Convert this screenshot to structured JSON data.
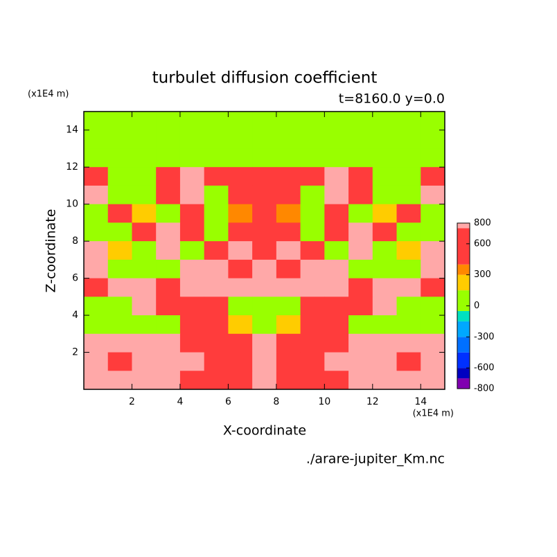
{
  "chart_data": {
    "type": "contour",
    "title": "turbulet diffusion coefficient",
    "subtitle": "t=8160.0 y=0.0",
    "x_label": "X-coordinate",
    "y_label": "Z-coordinate",
    "x_unit": "(x1E4 m)",
    "y_unit": "(x1E4 m)",
    "footnote": "./arare-jupiter_Km.nc",
    "xlim": [
      0,
      15
    ],
    "ylim": [
      0,
      15
    ],
    "xticks": [
      2,
      4,
      6,
      8,
      10,
      12,
      14
    ],
    "yticks": [
      2,
      4,
      6,
      8,
      10,
      12,
      14
    ],
    "x": [
      0.5,
      1.5,
      2.5,
      3.5,
      4.5,
      5.5,
      6.5,
      7.5,
      8.5,
      9.5,
      10.5,
      11.5,
      12.5,
      13.5,
      14.5
    ],
    "z_centers": [
      14.5,
      13.5,
      12.5,
      11.5,
      10.5,
      9.5,
      8.5,
      7.5,
      6.5,
      5.5,
      4.5,
      3.5,
      2.5,
      1.5,
      0.5
    ],
    "z": [
      [
        50,
        50,
        50,
        50,
        50,
        50,
        50,
        50,
        50,
        50,
        50,
        50,
        50,
        50,
        50
      ],
      [
        50,
        50,
        50,
        50,
        50,
        50,
        50,
        50,
        50,
        50,
        50,
        50,
        50,
        50,
        50
      ],
      [
        50,
        50,
        50,
        50,
        50,
        50,
        50,
        50,
        50,
        50,
        50,
        50,
        50,
        50,
        50
      ],
      [
        600,
        50,
        50,
        600,
        780,
        600,
        600,
        600,
        600,
        600,
        780,
        600,
        50,
        50,
        600
      ],
      [
        780,
        50,
        50,
        600,
        780,
        50,
        600,
        600,
        600,
        50,
        780,
        600,
        50,
        50,
        780
      ],
      [
        50,
        600,
        200,
        50,
        600,
        50,
        350,
        600,
        350,
        50,
        600,
        50,
        200,
        600,
        50
      ],
      [
        50,
        50,
        600,
        780,
        600,
        50,
        600,
        600,
        600,
        50,
        600,
        780,
        600,
        50,
        50
      ],
      [
        780,
        200,
        50,
        780,
        50,
        600,
        780,
        600,
        780,
        600,
        50,
        780,
        50,
        200,
        780
      ],
      [
        780,
        50,
        50,
        50,
        780,
        780,
        600,
        780,
        600,
        780,
        780,
        50,
        50,
        50,
        780
      ],
      [
        600,
        780,
        780,
        600,
        780,
        780,
        780,
        780,
        780,
        780,
        780,
        600,
        780,
        780,
        600
      ],
      [
        50,
        50,
        780,
        600,
        600,
        600,
        50,
        50,
        50,
        600,
        600,
        600,
        780,
        50,
        50
      ],
      [
        50,
        50,
        50,
        50,
        600,
        600,
        200,
        50,
        200,
        600,
        600,
        50,
        50,
        50,
        50
      ],
      [
        780,
        780,
        780,
        780,
        600,
        600,
        600,
        780,
        600,
        600,
        600,
        780,
        780,
        780,
        780
      ],
      [
        780,
        600,
        780,
        780,
        780,
        600,
        600,
        780,
        600,
        600,
        780,
        780,
        780,
        600,
        780
      ],
      [
        780,
        780,
        780,
        780,
        600,
        600,
        600,
        780,
        600,
        600,
        600,
        780,
        780,
        780,
        780
      ]
    ],
    "levels": [
      -800,
      -700,
      -600,
      -450,
      -300,
      -150,
      -50,
      150,
      300,
      400,
      750,
      800
    ],
    "colors": [
      "#8000b0",
      "#0000c0",
      "#0030ff",
      "#0070ff",
      "#00a8ff",
      "#00e0c0",
      "#99ff00",
      "#ffcc00",
      "#ff8800",
      "#ff3c3c",
      "#ffa8a8"
    ],
    "cbar_ticks": [
      800,
      600,
      300,
      0,
      -300,
      -600,
      -800
    ]
  }
}
